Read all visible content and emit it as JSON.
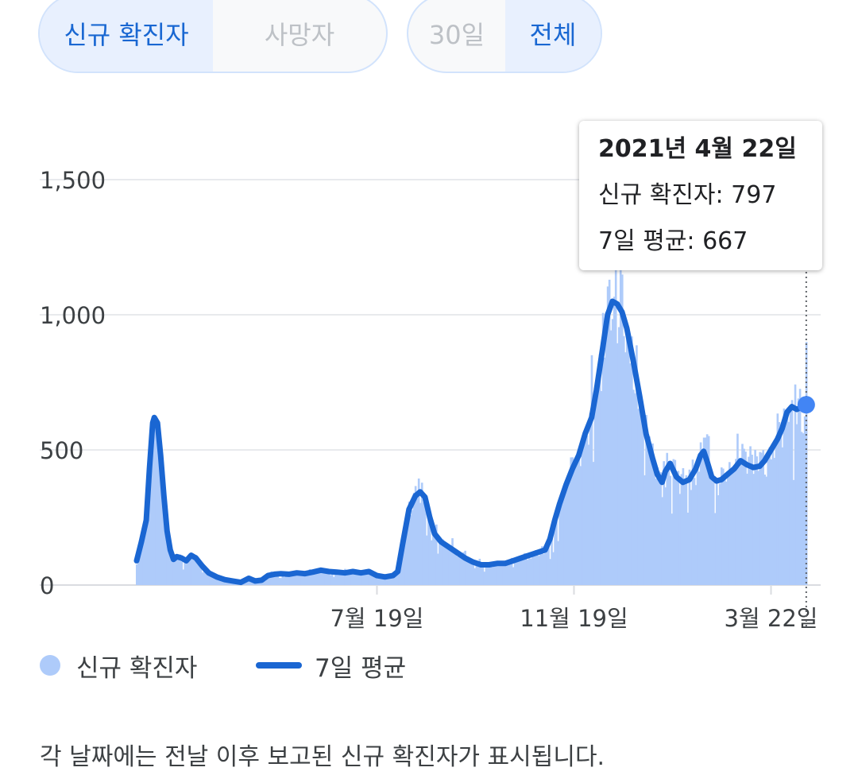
{
  "toggles": {
    "metric": {
      "options": [
        "신규 확진자",
        "사망자"
      ],
      "selected": 0
    },
    "range": {
      "options": [
        "30일",
        "전체"
      ],
      "selected": 1
    }
  },
  "tooltip": {
    "date": "2021년 4월 22일",
    "new_cases": "신규 확진자: 797",
    "avg": "7일 평균: 667"
  },
  "legend": {
    "new_cases": "신규 확진자",
    "avg": "7일 평균"
  },
  "footnote": "각 날짜에는 전날 이후 보고된 신규 확진자가 표시됩니다.",
  "colors": {
    "bars": "#aecbfa",
    "line": "#1a66d2",
    "accent": "#4285f4",
    "grid": "#e8eaed"
  },
  "chart_data": {
    "type": "bar",
    "y_ticks": [
      "0",
      "500",
      "1,000",
      "1,500"
    ],
    "y_tick_values": [
      0,
      500,
      1000,
      1500
    ],
    "ylim": [
      0,
      1700
    ],
    "x_ticks": [
      {
        "label": "7월 19일",
        "day": 150
      },
      {
        "label": "11월 19일",
        "day": 273
      },
      {
        "label": "3월 22일",
        "day": 396
      }
    ],
    "x_range": [
      0,
      427
    ],
    "series": [
      {
        "name": "신규 확진자",
        "type": "bar"
      },
      {
        "name": "7일 평균",
        "type": "line"
      }
    ],
    "avg_points": [
      [
        0,
        90
      ],
      [
        3,
        160
      ],
      [
        6,
        240
      ],
      [
        8,
        430
      ],
      [
        10,
        600
      ],
      [
        11,
        620
      ],
      [
        13,
        600
      ],
      [
        15,
        480
      ],
      [
        17,
        330
      ],
      [
        19,
        200
      ],
      [
        21,
        130
      ],
      [
        23,
        95
      ],
      [
        25,
        105
      ],
      [
        28,
        100
      ],
      [
        31,
        90
      ],
      [
        34,
        110
      ],
      [
        37,
        100
      ],
      [
        41,
        70
      ],
      [
        45,
        45
      ],
      [
        50,
        30
      ],
      [
        55,
        20
      ],
      [
        60,
        15
      ],
      [
        65,
        10
      ],
      [
        70,
        25
      ],
      [
        74,
        15
      ],
      [
        78,
        18
      ],
      [
        82,
        35
      ],
      [
        86,
        40
      ],
      [
        90,
        42
      ],
      [
        95,
        40
      ],
      [
        100,
        45
      ],
      [
        105,
        42
      ],
      [
        110,
        48
      ],
      [
        115,
        55
      ],
      [
        120,
        50
      ],
      [
        125,
        48
      ],
      [
        130,
        45
      ],
      [
        135,
        50
      ],
      [
        140,
        45
      ],
      [
        145,
        50
      ],
      [
        150,
        35
      ],
      [
        155,
        30
      ],
      [
        160,
        35
      ],
      [
        163,
        50
      ],
      [
        166,
        150
      ],
      [
        170,
        280
      ],
      [
        174,
        330
      ],
      [
        177,
        345
      ],
      [
        180,
        325
      ],
      [
        183,
        250
      ],
      [
        186,
        190
      ],
      [
        190,
        160
      ],
      [
        195,
        140
      ],
      [
        200,
        120
      ],
      [
        205,
        100
      ],
      [
        210,
        85
      ],
      [
        215,
        75
      ],
      [
        220,
        75
      ],
      [
        225,
        80
      ],
      [
        230,
        80
      ],
      [
        235,
        90
      ],
      [
        240,
        100
      ],
      [
        245,
        110
      ],
      [
        250,
        120
      ],
      [
        255,
        130
      ],
      [
        258,
        170
      ],
      [
        261,
        240
      ],
      [
        264,
        300
      ],
      [
        268,
        370
      ],
      [
        272,
        430
      ],
      [
        276,
        480
      ],
      [
        280,
        560
      ],
      [
        284,
        620
      ],
      [
        287,
        720
      ],
      [
        291,
        880
      ],
      [
        294,
        1000
      ],
      [
        297,
        1050
      ],
      [
        300,
        1040
      ],
      [
        303,
        1010
      ],
      [
        306,
        950
      ],
      [
        310,
        830
      ],
      [
        314,
        700
      ],
      [
        318,
        560
      ],
      [
        322,
        470
      ],
      [
        325,
        410
      ],
      [
        328,
        380
      ],
      [
        330,
        420
      ],
      [
        333,
        450
      ],
      [
        337,
        400
      ],
      [
        341,
        380
      ],
      [
        345,
        390
      ],
      [
        349,
        430
      ],
      [
        352,
        480
      ],
      [
        354,
        495
      ],
      [
        356,
        460
      ],
      [
        359,
        400
      ],
      [
        362,
        385
      ],
      [
        365,
        390
      ],
      [
        369,
        410
      ],
      [
        373,
        430
      ],
      [
        377,
        460
      ],
      [
        381,
        445
      ],
      [
        385,
        435
      ],
      [
        389,
        440
      ],
      [
        392,
        460
      ],
      [
        396,
        500
      ],
      [
        400,
        540
      ],
      [
        403,
        580
      ],
      [
        406,
        640
      ],
      [
        409,
        660
      ],
      [
        412,
        650
      ],
      [
        416,
        660
      ],
      [
        418,
        667
      ]
    ],
    "highlight_day": 418
  }
}
